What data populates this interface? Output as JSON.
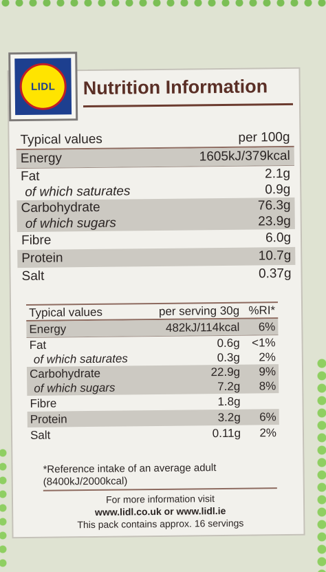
{
  "brand": {
    "logo_text": "LIDL"
  },
  "title": "Nutrition Information",
  "per100": {
    "header": {
      "label": "Typical values",
      "col": "per 100g"
    },
    "rows": [
      {
        "label": "Energy",
        "value": "1605kJ/379kcal"
      },
      {
        "label": "Fat",
        "value": "2.1g"
      },
      {
        "label": "of which saturates",
        "value": "0.9g"
      },
      {
        "label": "Carbohydrate",
        "value": "76.3g"
      },
      {
        "label": "of which sugars",
        "value": "23.9g"
      },
      {
        "label": "Fibre",
        "value": "6.0g"
      },
      {
        "label": "Protein",
        "value": "10.7g"
      },
      {
        "label": "Salt",
        "value": "0.37g"
      }
    ]
  },
  "perServing": {
    "header": {
      "label": "Typical values",
      "col1": "per serving 30g",
      "col2": "%RI*"
    },
    "rows": [
      {
        "label": "Energy",
        "value": "482kJ/114kcal",
        "ri": "6%"
      },
      {
        "label": "Fat",
        "value": "0.6g",
        "ri": "<1%"
      },
      {
        "label": "of which saturates",
        "value": "0.3g",
        "ri": "2%"
      },
      {
        "label": "Carbohydrate",
        "value": "22.9g",
        "ri": "9%"
      },
      {
        "label": "of which sugars",
        "value": "7.2g",
        "ri": "8%"
      },
      {
        "label": "Fibre",
        "value": "1.8g",
        "ri": ""
      },
      {
        "label": "Protein",
        "value": "3.2g",
        "ri": "6%"
      },
      {
        "label": "Salt",
        "value": "0.11g",
        "ri": "2%"
      }
    ]
  },
  "footnote": {
    "line1": "*Reference intake of an average adult",
    "line2": "(8400kJ/2000kcal)"
  },
  "info": {
    "line1": "For more information visit",
    "line2": "www.lidl.co.uk or www.lidl.ie",
    "line3": "This pack contains approx. 16 servings"
  }
}
